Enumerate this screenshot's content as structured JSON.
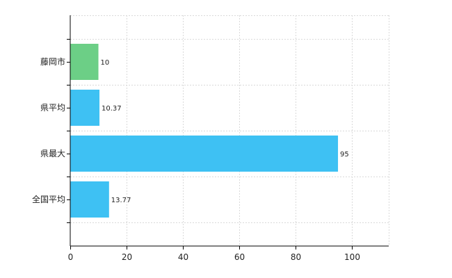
{
  "chart_data": {
    "type": "bar",
    "orientation": "horizontal",
    "categories": [
      "藤岡市",
      "県平均",
      "県最大",
      "全国平均"
    ],
    "values": [
      10,
      10.37,
      95,
      13.77
    ],
    "value_labels": [
      "10",
      "10.37",
      "95",
      "13.77"
    ],
    "xlim": [
      0,
      113
    ],
    "xticks": [
      0,
      20,
      40,
      60,
      80,
      100
    ],
    "grid": true,
    "bar_colors": [
      "#6ccf86",
      "#3ec1f3",
      "#3ec1f3",
      "#3ec1f3"
    ]
  }
}
